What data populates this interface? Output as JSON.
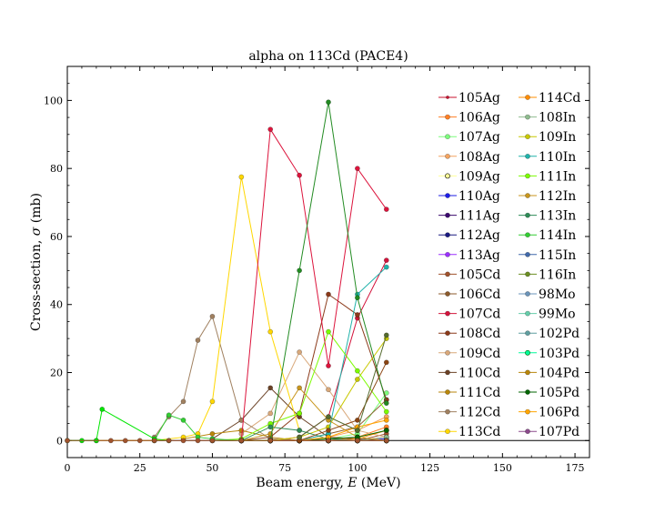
{
  "chart_data": {
    "type": "line",
    "title": "alpha on 113Cd (PACE4)",
    "xlabel_text": "Beam energy, ",
    "xlabel_var": "E",
    "xlabel_unit": " (MeV)",
    "ylabel_text": "Cross-section, ",
    "ylabel_var": "σ",
    "ylabel_unit": " (mb)",
    "xlim": [
      0,
      180
    ],
    "ylim": [
      -5,
      110
    ],
    "xticks": [
      0,
      25,
      50,
      75,
      100,
      125,
      150,
      175
    ],
    "yticks": [
      0,
      20,
      40,
      60,
      80,
      100
    ],
    "grid": false,
    "legend_position": "upper-right",
    "legend_columns": 2,
    "series": [
      {
        "name": "105Ag",
        "color": "#c8102e",
        "marker": "dot",
        "x": [
          60,
          70,
          80,
          90,
          100,
          110
        ],
        "y": [
          0,
          0,
          0,
          0,
          0,
          1
        ]
      },
      {
        "name": "106Ag",
        "color": "#ff7f24",
        "x": [
          60,
          70,
          80,
          90,
          100,
          110
        ],
        "y": [
          0,
          0,
          0,
          0,
          1,
          4
        ]
      },
      {
        "name": "107Ag",
        "color": "#7cfc7c",
        "x": [
          60,
          70,
          80,
          90,
          100,
          110
        ],
        "y": [
          0,
          0,
          0,
          0.5,
          2,
          14
        ]
      },
      {
        "name": "108Ag",
        "color": "#f4a460",
        "x": [
          60,
          70,
          80,
          90,
          100,
          110
        ],
        "y": [
          0,
          0,
          0,
          1,
          3,
          7
        ]
      },
      {
        "name": "109Ag",
        "color": "#ffff99",
        "edge": "#000000",
        "x": [
          60,
          70,
          80,
          90,
          100,
          110
        ],
        "y": [
          0,
          0,
          0,
          0.5,
          1,
          3
        ]
      },
      {
        "name": "110Ag",
        "color": "#1e1ee6",
        "x": [
          70,
          80,
          90,
          100,
          110
        ],
        "y": [
          0,
          0,
          0,
          0,
          0.5
        ]
      },
      {
        "name": "111Ag",
        "color": "#3c0a6e",
        "x": [
          70,
          80,
          90,
          100,
          110
        ],
        "y": [
          0,
          0,
          0,
          0,
          0
        ]
      },
      {
        "name": "112Ag",
        "color": "#1a1a80",
        "x": [
          70,
          80,
          90,
          100,
          110
        ],
        "y": [
          0,
          0,
          0,
          0,
          0
        ]
      },
      {
        "name": "113Ag",
        "color": "#9b30ff",
        "x": [
          70,
          80,
          90,
          100,
          110
        ],
        "y": [
          0,
          0,
          0,
          0,
          0
        ]
      },
      {
        "name": "105Cd",
        "color": "#a0522d",
        "x": [
          70,
          80,
          90,
          100,
          110
        ],
        "y": [
          0,
          0,
          0,
          0,
          2
        ]
      },
      {
        "name": "106Cd",
        "color": "#8b5a2b",
        "x": [
          60,
          70,
          80,
          90,
          100,
          110
        ],
        "y": [
          0,
          0,
          0,
          2,
          4,
          12
        ]
      },
      {
        "name": "107Cd",
        "color": "#d2143c",
        "x": [
          60,
          70,
          80,
          90,
          100,
          110
        ],
        "y": [
          0,
          0,
          1,
          7,
          36,
          53
        ]
      },
      {
        "name": "108Cd",
        "color": "#8b3a1a",
        "x": [
          60,
          70,
          80,
          90,
          100,
          110
        ],
        "y": [
          0,
          1,
          8,
          43,
          37,
          12
        ]
      },
      {
        "name": "109Cd",
        "color": "#d9a87a",
        "x": [
          60,
          70,
          80,
          90,
          100,
          110
        ],
        "y": [
          2,
          8,
          26,
          15,
          3,
          1
        ]
      },
      {
        "name": "110Cd",
        "color": "#6b4226",
        "x": [
          50,
          60,
          70,
          80,
          90,
          100,
          110
        ],
        "y": [
          0.5,
          6,
          15.5,
          7,
          1,
          0.5,
          0
        ]
      },
      {
        "name": "111Cd",
        "color": "#b8860b",
        "x": [
          40,
          50,
          60,
          70,
          80,
          90,
          100,
          110
        ],
        "y": [
          0.5,
          2,
          3,
          1,
          0,
          0,
          0,
          0
        ]
      },
      {
        "name": "112Cd",
        "color": "#a08060",
        "x": [
          30,
          35,
          40,
          45,
          50,
          60,
          70,
          80
        ],
        "y": [
          1,
          7,
          11.5,
          29.5,
          36.5,
          6,
          0.5,
          0
        ]
      },
      {
        "name": "113Cd",
        "color": "#ffd700",
        "x": [
          10,
          30,
          40,
          45,
          50,
          60,
          70,
          80
        ],
        "y": [
          0,
          0,
          1,
          2,
          11.5,
          77.5,
          32,
          3
        ]
      },
      {
        "name": "114Cd",
        "color": "#ff8c00",
        "x": [
          60,
          70,
          80,
          90,
          100,
          110
        ],
        "y": [
          0,
          0,
          0,
          0,
          0.5,
          3
        ]
      },
      {
        "name": "108In",
        "color": "#8fbc8f",
        "x": [
          70,
          80,
          90,
          100,
          110
        ],
        "y": [
          0,
          0,
          0,
          0,
          1
        ]
      },
      {
        "name": "109In",
        "color": "#c8c800",
        "x": [
          60,
          70,
          80,
          90,
          100,
          110
        ],
        "y": [
          0,
          0,
          1,
          4,
          18,
          30
        ]
      },
      {
        "name": "110In",
        "color": "#20b2aa",
        "x": [
          60,
          70,
          80,
          90,
          100,
          110
        ],
        "y": [
          0,
          0,
          0,
          2,
          43,
          51
        ]
      },
      {
        "name": "111In",
        "color": "#7cfc00",
        "x": [
          50,
          60,
          70,
          80,
          90,
          100,
          110
        ],
        "y": [
          0,
          0.5,
          5,
          8,
          32,
          20.5,
          8.5
        ]
      },
      {
        "name": "112In",
        "color": "#c8961e",
        "x": [
          50,
          60,
          70,
          80,
          90,
          100,
          110
        ],
        "y": [
          0,
          0,
          2,
          15.5,
          6,
          1,
          0
        ]
      },
      {
        "name": "113In",
        "color": "#2e8b57",
        "x": [
          50,
          60,
          70,
          80,
          90,
          100,
          110
        ],
        "y": [
          0,
          0,
          4,
          3,
          0.5,
          0,
          0
        ]
      },
      {
        "name": "114In",
        "color": "#32cd32",
        "x": [
          30,
          35,
          40,
          45,
          50,
          60,
          70,
          80
        ],
        "y": [
          0,
          7.5,
          6,
          1,
          0.5,
          0,
          0,
          0
        ]
      },
      {
        "name": "115In",
        "color": "#4169aa",
        "x": [
          60,
          70,
          80,
          90,
          100,
          110
        ],
        "y": [
          0,
          0,
          0,
          0,
          0,
          0
        ]
      },
      {
        "name": "116In",
        "color": "#6b8e23",
        "x": [
          60,
          70,
          80,
          90,
          100,
          110
        ],
        "y": [
          0,
          0,
          0,
          0,
          0,
          0
        ]
      },
      {
        "name": "98Mo",
        "color": "#6a93b8",
        "x": [
          70,
          80,
          90,
          100,
          110
        ],
        "y": [
          0,
          0,
          0,
          0,
          0
        ]
      },
      {
        "name": "99Mo",
        "color": "#66cdaa",
        "x": [
          70,
          80,
          90,
          100,
          110
        ],
        "y": [
          0,
          0,
          0,
          0,
          0
        ]
      },
      {
        "name": "102Pd",
        "color": "#5f9ea0",
        "x": [
          70,
          80,
          90,
          100,
          110
        ],
        "y": [
          0,
          0,
          0,
          0,
          0
        ]
      },
      {
        "name": "103Pd",
        "color": "#00fa9a",
        "edge": "#006400",
        "x": [
          70,
          80,
          90,
          100,
          110
        ],
        "y": [
          0,
          0,
          0,
          0,
          0
        ]
      },
      {
        "name": "104Pd",
        "color": "#b8860b",
        "x": [
          70,
          80,
          90,
          100,
          110
        ],
        "y": [
          0,
          0,
          0,
          0,
          0
        ]
      },
      {
        "name": "105Pd",
        "color": "#006400",
        "x": [
          60,
          70,
          80,
          90,
          100,
          110
        ],
        "y": [
          0,
          0,
          0,
          0.5,
          1,
          3
        ]
      },
      {
        "name": "106Pd",
        "color": "#ffa500",
        "x": [
          60,
          70,
          80,
          90,
          100,
          110
        ],
        "y": [
          0,
          0,
          0,
          1,
          4,
          6
        ]
      },
      {
        "name": "107Pd",
        "color": "#8b4a8b",
        "x": [
          70,
          80,
          90,
          100,
          110
        ],
        "y": [
          0,
          0,
          0,
          0,
          0
        ]
      },
      {
        "name": "",
        "color": "#00e600",
        "x": [
          0,
          5,
          10,
          12,
          30,
          35
        ],
        "y": [
          0,
          0,
          0,
          9.2,
          0.5,
          0
        ]
      },
      {
        "name": "",
        "color": "#dc143c",
        "x": [
          60,
          70,
          80,
          90,
          100,
          110
        ],
        "y": [
          0,
          91.5,
          78,
          22,
          80,
          68
        ]
      },
      {
        "name": "",
        "color": "#228b22",
        "x": [
          60,
          70,
          80,
          90,
          100,
          110
        ],
        "y": [
          0,
          0,
          50,
          99.5,
          42,
          11
        ]
      },
      {
        "name": "",
        "color": "#a0522d",
        "x": [
          0,
          15,
          20,
          25,
          30,
          35,
          40,
          45,
          50,
          60,
          70,
          80,
          90,
          100,
          110
        ],
        "y": [
          0,
          0,
          0,
          0,
          0,
          0,
          0,
          0,
          0,
          0,
          0,
          0,
          0,
          0,
          0
        ]
      },
      {
        "name": "",
        "color": "#8b4513",
        "x": [
          80,
          90,
          100,
          110
        ],
        "y": [
          0,
          3,
          6,
          23
        ]
      },
      {
        "name": "",
        "color": "#556b2f",
        "x": [
          80,
          90,
          100,
          110
        ],
        "y": [
          1,
          7,
          3,
          31
        ]
      }
    ]
  }
}
